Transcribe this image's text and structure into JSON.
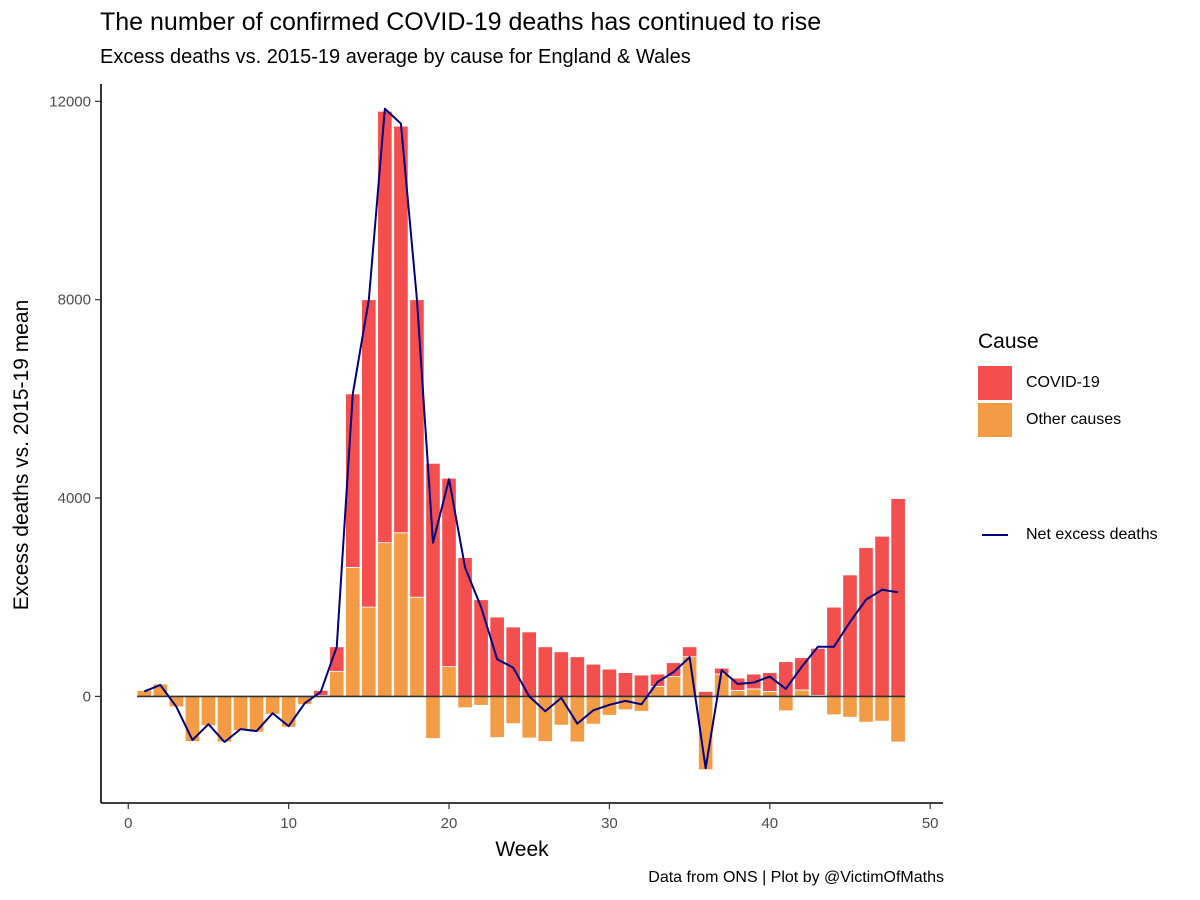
{
  "chart_data": {
    "type": "bar",
    "title": "The number of confirmed COVID-19 deaths has continued to rise",
    "subtitle": "Excess deaths vs. 2015-19 average by cause for England & Wales",
    "xlabel": "Week",
    "ylabel": "Excess deaths vs. 2015-19 mean",
    "caption": "Data from ONS | Plot by @VictimOfMaths",
    "xlim": [
      -1.7,
      50.8
    ],
    "ylim": [
      -2150,
      12350
    ],
    "xticks": [
      0,
      10,
      20,
      30,
      40,
      50
    ],
    "yticks": [
      0,
      4000,
      8000,
      12000
    ],
    "grid": false,
    "legend_position": "right",
    "legend_title": "Cause",
    "stacked_series": [
      {
        "name": "COVID-19",
        "color": "#F44F4F",
        "weeks": [
          12,
          13,
          14,
          15,
          16,
          17,
          18,
          19,
          20,
          21,
          22,
          23,
          24,
          25,
          26,
          27,
          28,
          29,
          30,
          31,
          32,
          33,
          34,
          35,
          36,
          37,
          38,
          39,
          40,
          41,
          42,
          43,
          44,
          45,
          46,
          47,
          48
        ],
        "values": [
          100,
          500,
          3500,
          6200,
          8700,
          8200,
          6000,
          4700,
          3800,
          2800,
          1950,
          1600,
          1400,
          1300,
          1000,
          900,
          800,
          650,
          550,
          480,
          430,
          250,
          280,
          200,
          100,
          120,
          250,
          300,
          380,
          700,
          650,
          950,
          1800,
          2450,
          3000,
          3230,
          3990
        ]
      },
      {
        "name": "Other causes",
        "color": "#F39B45",
        "weeks": [
          1,
          2,
          3,
          4,
          5,
          6,
          7,
          8,
          9,
          10,
          11,
          12,
          13,
          14,
          15,
          16,
          17,
          18,
          19,
          20,
          21,
          22,
          23,
          24,
          25,
          26,
          27,
          28,
          29,
          30,
          31,
          32,
          33,
          34,
          35,
          36,
          37,
          38,
          39,
          40,
          41,
          42,
          43,
          44,
          45,
          46,
          47,
          48
        ],
        "values": [
          120,
          250,
          -210,
          -910,
          -590,
          -920,
          -690,
          -720,
          -360,
          -620,
          -160,
          20,
          500,
          2600,
          1800,
          3100,
          3300,
          2000,
          -850,
          600,
          -230,
          -180,
          -830,
          -550,
          -840,
          -910,
          -580,
          -920,
          -560,
          -380,
          -270,
          -300,
          200,
          400,
          800,
          -1480,
          450,
          120,
          150,
          100,
          -290,
          130,
          20,
          -370,
          -420,
          -520,
          -500,
          -920
        ]
      }
    ],
    "line_series": {
      "name": "Net excess deaths",
      "color": "#000080",
      "x": [
        1,
        2,
        3,
        4,
        5,
        6,
        7,
        8,
        9,
        10,
        11,
        12,
        13,
        14,
        15,
        16,
        17,
        18,
        19,
        20,
        21,
        22,
        23,
        24,
        25,
        26,
        27,
        28,
        29,
        30,
        31,
        32,
        33,
        34,
        35,
        36,
        37,
        38,
        39,
        40,
        41,
        42,
        43,
        44,
        45,
        46,
        47,
        48
      ],
      "y": [
        100,
        230,
        -210,
        -880,
        -560,
        -920,
        -660,
        -700,
        -340,
        -600,
        -140,
        90,
        1000,
        6100,
        8000,
        11850,
        11550,
        8000,
        3100,
        4380,
        2600,
        1800,
        750,
        580,
        0,
        -300,
        -30,
        -550,
        -280,
        -170,
        -90,
        -160,
        290,
        490,
        790,
        -1450,
        530,
        250,
        280,
        400,
        150,
        600,
        1000,
        1000,
        1500,
        1950,
        2150,
        2100
      ]
    }
  }
}
